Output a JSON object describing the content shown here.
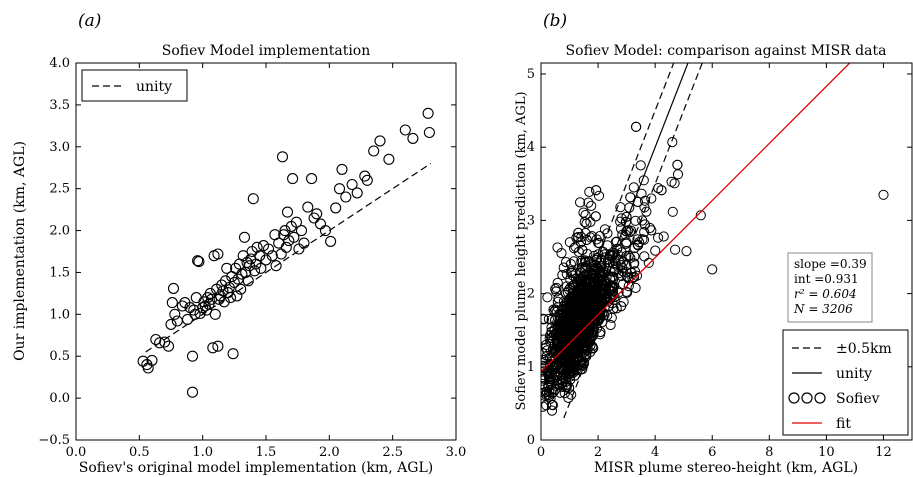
{
  "chart_data": [
    {
      "panel_label": "(a)",
      "type": "scatter",
      "title": "Sofiev Model implementation",
      "xlabel": "Sofiev's original model implementation (km, AGL)",
      "ylabel": "Our implementation (km, AGL)",
      "xlim": [
        0.0,
        3.0
      ],
      "ylim": [
        -0.5,
        4.0
      ],
      "xticks": [
        "0.0",
        "0.5",
        "1.0",
        "1.5",
        "2.0",
        "2.5",
        "3.0"
      ],
      "yticks": [
        "−0.5",
        "0.0",
        "0.5",
        "1.0",
        "1.5",
        "2.0",
        "2.5",
        "3.0",
        "3.5",
        "4.0"
      ],
      "legend": {
        "placement": "top-left",
        "entries": [
          {
            "label": "unity",
            "style": "dashed"
          }
        ]
      },
      "series": [
        {
          "marker": "open-circle",
          "points": [
            [
              0.53,
              0.44
            ],
            [
              0.56,
              0.4
            ],
            [
              0.57,
              0.36
            ],
            [
              0.6,
              0.45
            ],
            [
              0.63,
              0.7
            ],
            [
              0.66,
              0.66
            ],
            [
              0.7,
              0.67
            ],
            [
              0.73,
              0.62
            ],
            [
              0.75,
              0.88
            ],
            [
              0.78,
              1.0
            ],
            [
              0.76,
              1.14
            ],
            [
              0.77,
              1.31
            ],
            [
              0.8,
              0.92
            ],
            [
              0.84,
              1.1
            ],
            [
              0.86,
              1.14
            ],
            [
              0.88,
              0.94
            ],
            [
              0.9,
              1.08
            ],
            [
              0.92,
              0.5
            ],
            [
              0.92,
              0.07
            ],
            [
              0.93,
              1.05
            ],
            [
              0.94,
              1.0
            ],
            [
              0.95,
              1.2
            ],
            [
              0.96,
              1.64
            ],
            [
              0.97,
              1.63
            ],
            [
              0.98,
              1.01
            ],
            [
              1.0,
              1.08
            ],
            [
              1.01,
              1.15
            ],
            [
              1.02,
              1.1
            ],
            [
              1.03,
              1.05
            ],
            [
              1.04,
              1.2
            ],
            [
              1.05,
              1.12
            ],
            [
              1.06,
              1.25
            ],
            [
              1.07,
              1.18
            ],
            [
              1.08,
              0.6
            ],
            [
              1.09,
              1.7
            ],
            [
              1.1,
              1.0
            ],
            [
              1.11,
              1.3
            ],
            [
              1.12,
              0.62
            ],
            [
              1.12,
              1.72
            ],
            [
              1.13,
              1.18
            ],
            [
              1.14,
              1.22
            ],
            [
              1.15,
              1.35
            ],
            [
              1.16,
              1.28
            ],
            [
              1.17,
              1.15
            ],
            [
              1.18,
              1.4
            ],
            [
              1.19,
              1.55
            ],
            [
              1.2,
              1.26
            ],
            [
              1.21,
              1.32
            ],
            [
              1.22,
              1.2
            ],
            [
              1.23,
              1.45
            ],
            [
              1.24,
              0.53
            ],
            [
              1.25,
              1.38
            ],
            [
              1.26,
              1.55
            ],
            [
              1.27,
              1.22
            ],
            [
              1.28,
              1.42
            ],
            [
              1.29,
              1.6
            ],
            [
              1.3,
              1.3
            ],
            [
              1.31,
              1.48
            ],
            [
              1.32,
              1.7
            ],
            [
              1.33,
              1.92
            ],
            [
              1.34,
              1.5
            ],
            [
              1.35,
              1.62
            ],
            [
              1.36,
              1.4
            ],
            [
              1.37,
              1.58
            ],
            [
              1.38,
              1.66
            ],
            [
              1.39,
              1.75
            ],
            [
              1.4,
              2.38
            ],
            [
              1.41,
              1.52
            ],
            [
              1.42,
              1.6
            ],
            [
              1.43,
              1.8
            ],
            [
              1.45,
              1.7
            ],
            [
              1.46,
              1.55
            ],
            [
              1.48,
              1.82
            ],
            [
              1.5,
              1.65
            ],
            [
              1.52,
              1.78
            ],
            [
              1.55,
              1.7
            ],
            [
              1.57,
              1.95
            ],
            [
              1.58,
              1.58
            ],
            [
              1.6,
              1.85
            ],
            [
              1.62,
              1.72
            ],
            [
              1.63,
              2.88
            ],
            [
              1.64,
              1.95
            ],
            [
              1.65,
              2.0
            ],
            [
              1.66,
              1.8
            ],
            [
              1.67,
              2.22
            ],
            [
              1.68,
              1.88
            ],
            [
              1.7,
              2.05
            ],
            [
              1.71,
              2.62
            ],
            [
              1.72,
              1.92
            ],
            [
              1.74,
              2.1
            ],
            [
              1.76,
              1.78
            ],
            [
              1.78,
              2.0
            ],
            [
              1.8,
              1.85
            ],
            [
              1.83,
              2.28
            ],
            [
              1.86,
              2.62
            ],
            [
              1.88,
              2.15
            ],
            [
              1.9,
              2.2
            ],
            [
              1.93,
              2.08
            ],
            [
              1.97,
              2.0
            ],
            [
              2.01,
              1.87
            ],
            [
              2.05,
              2.27
            ],
            [
              2.08,
              2.5
            ],
            [
              2.1,
              2.73
            ],
            [
              2.13,
              2.4
            ],
            [
              2.18,
              2.55
            ],
            [
              2.22,
              2.45
            ],
            [
              2.28,
              2.65
            ],
            [
              2.3,
              2.6
            ],
            [
              2.35,
              2.95
            ],
            [
              2.4,
              3.07
            ],
            [
              2.47,
              2.85
            ],
            [
              2.6,
              3.2
            ],
            [
              2.66,
              3.1
            ],
            [
              2.78,
              3.4
            ],
            [
              2.79,
              3.17
            ]
          ]
        }
      ]
    },
    {
      "panel_label": "(b)",
      "type": "scatter",
      "title": "Sofiev Model: comparison against MISR data",
      "xlabel": "MISR plume stereo-height (km, AGL)",
      "ylabel": "Sofiev model plume height prediction (km, AGL)",
      "xlim": [
        0,
        13
      ],
      "ylim": [
        0,
        5.15
      ],
      "xticks": [
        "0",
        "2",
        "4",
        "6",
        "8",
        "10",
        "12"
      ],
      "yticks": [
        "0",
        "1",
        "2",
        "3",
        "4",
        "5"
      ],
      "stats": {
        "slope": "0.39",
        "int": "0.931",
        "r2": "0.604",
        "N": "3206"
      },
      "stats_lines": [
        "slope =0.39",
        "int =0.931",
        "r² = 0.604",
        "N = 3206"
      ],
      "fit": {
        "slope": 0.39,
        "intercept": 0.931
      },
      "legend": {
        "placement": "lower-right",
        "entries": [
          {
            "label": "±0.5km",
            "style": "dashed"
          },
          {
            "label": "unity",
            "style": "solid"
          },
          {
            "label": "Sofiev",
            "style": "open-circle"
          },
          {
            "label": "fit",
            "style": "red-line"
          }
        ]
      },
      "series": [
        {
          "name": "Sofiev",
          "marker": "open-circle",
          "n": 3206,
          "outliers": [
            [
              12.0,
              3.35
            ],
            [
              6.0,
              2.33
            ],
            [
              5.6,
              3.07
            ],
            [
              5.1,
              2.58
            ],
            [
              4.7,
              2.6
            ],
            [
              4.3,
              2.78
            ],
            [
              4.6,
              4.07
            ],
            [
              4.8,
              3.63
            ]
          ]
        }
      ]
    }
  ]
}
